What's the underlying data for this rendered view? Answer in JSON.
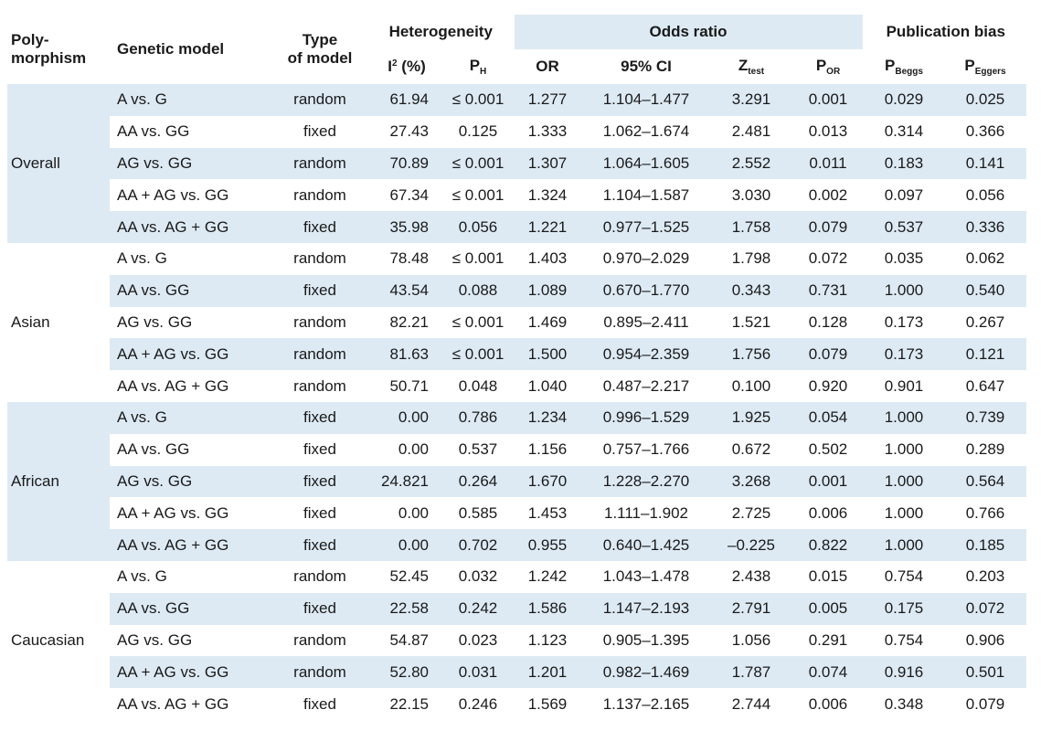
{
  "headers": {
    "polymorphism_line1": "Poly-",
    "polymorphism_line2": "morphism",
    "genetic_model": "Genetic model",
    "type_line1": "Type",
    "type_line2": "of model",
    "heterogeneity": "Heterogeneity",
    "odds_ratio": "Odds ratio",
    "publication_bias": "Publication bias",
    "i2_main": "I",
    "i2_sup": "2",
    "i2_rest": " (%)",
    "ph_main": "P",
    "ph_sub": "H",
    "or": "OR",
    "ci": "95% CI",
    "z_main": "Z",
    "z_sub": "test",
    "por_main": "P",
    "por_sub": "OR",
    "pbeggs_main": "P",
    "pbeggs_sub": "Beggs",
    "peggers_main": "P",
    "peggers_sub": "Eggers"
  },
  "groups": [
    "Overall",
    "Asian",
    "African",
    "Caucasian"
  ],
  "rows": [
    {
      "model": "A vs. G",
      "type": "random",
      "i2": "61.94",
      "ph": "≤ 0.001",
      "or": "1.277",
      "ci": "1.104–1.477",
      "z": "3.291",
      "por": "0.001",
      "pb": "0.029",
      "pe": "0.025"
    },
    {
      "model": "AA vs. GG",
      "type": "fixed",
      "i2": "27.43",
      "ph": "0.125",
      "or": "1.333",
      "ci": "1.062–1.674",
      "z": "2.481",
      "por": "0.013",
      "pb": "0.314",
      "pe": "0.366"
    },
    {
      "model": "AG vs. GG",
      "type": "random",
      "i2": "70.89",
      "ph": "≤ 0.001",
      "or": "1.307",
      "ci": "1.064–1.605",
      "z": "2.552",
      "por": "0.011",
      "pb": "0.183",
      "pe": "0.141"
    },
    {
      "model": "AA + AG vs. GG",
      "type": "random",
      "i2": "67.34",
      "ph": "≤ 0.001",
      "or": "1.324",
      "ci": "1.104–1.587",
      "z": "3.030",
      "por": "0.002",
      "pb": "0.097",
      "pe": "0.056"
    },
    {
      "model": "AA vs. AG + GG",
      "type": "fixed",
      "i2": "35.98",
      "ph": "0.056",
      "or": "1.221",
      "ci": "0.977–1.525",
      "z": "1.758",
      "por": "0.079",
      "pb": "0.537",
      "pe": "0.336"
    },
    {
      "model": "A vs. G",
      "type": "random",
      "i2": "78.48",
      "ph": "≤ 0.001",
      "or": "1.403",
      "ci": "0.970–2.029",
      "z": "1.798",
      "por": "0.072",
      "pb": "0.035",
      "pe": "0.062"
    },
    {
      "model": "AA vs. GG",
      "type": "fixed",
      "i2": "43.54",
      "ph": "0.088",
      "or": "1.089",
      "ci": "0.670–1.770",
      "z": "0.343",
      "por": "0.731",
      "pb": "1.000",
      "pe": "0.540"
    },
    {
      "model": "AG vs. GG",
      "type": "random",
      "i2": "82.21",
      "ph": "≤ 0.001",
      "or": "1.469",
      "ci": "0.895–2.411",
      "z": "1.521",
      "por": "0.128",
      "pb": "0.173",
      "pe": "0.267"
    },
    {
      "model": "AA + AG vs. GG",
      "type": "random",
      "i2": "81.63",
      "ph": "≤ 0.001",
      "or": "1.500",
      "ci": "0.954–2.359",
      "z": "1.756",
      "por": "0.079",
      "pb": "0.173",
      "pe": "0.121"
    },
    {
      "model": "AA vs. AG + GG",
      "type": "random",
      "i2": "50.71",
      "ph": "0.048",
      "or": "1.040",
      "ci": "0.487–2.217",
      "z": "0.100",
      "por": "0.920",
      "pb": "0.901",
      "pe": "0.647"
    },
    {
      "model": "A vs. G",
      "type": "fixed",
      "i2": "0.00",
      "ph": "0.786",
      "or": "1.234",
      "ci": "0.996–1.529",
      "z": "1.925",
      "por": "0.054",
      "pb": "1.000",
      "pe": "0.739"
    },
    {
      "model": "AA vs. GG",
      "type": "fixed",
      "i2": "0.00",
      "ph": "0.537",
      "or": "1.156",
      "ci": "0.757–1.766",
      "z": "0.672",
      "por": "0.502",
      "pb": "1.000",
      "pe": "0.289"
    },
    {
      "model": "AG vs. GG",
      "type": "fixed",
      "i2": "24.821",
      "ph": "0.264",
      "or": "1.670",
      "ci": "1.228–2.270",
      "z": "3.268",
      "por": "0.001",
      "pb": "1.000",
      "pe": "0.564"
    },
    {
      "model": "AA + AG vs. GG",
      "type": "fixed",
      "i2": "0.00",
      "ph": "0.585",
      "or": "1.453",
      "ci": "1.111–1.902",
      "z": "2.725",
      "por": "0.006",
      "pb": "1.000",
      "pe": "0.766"
    },
    {
      "model": "AA vs. AG + GG",
      "type": "fixed",
      "i2": "0.00",
      "ph": "0.702",
      "or": "0.955",
      "ci": "0.640–1.425",
      "z": "–0.225",
      "por": "0.822",
      "pb": "1.000",
      "pe": "0.185"
    },
    {
      "model": "A vs. G",
      "type": "random",
      "i2": "52.45",
      "ph": "0.032",
      "or": "1.242",
      "ci": "1.043–1.478",
      "z": "2.438",
      "por": "0.015",
      "pb": "0.754",
      "pe": "0.203"
    },
    {
      "model": "AA vs. GG",
      "type": "fixed",
      "i2": "22.58",
      "ph": "0.242",
      "or": "1.586",
      "ci": "1.147–2.193",
      "z": "2.791",
      "por": "0.005",
      "pb": "0.175",
      "pe": "0.072"
    },
    {
      "model": "AG vs. GG",
      "type": "random",
      "i2": "54.87",
      "ph": "0.023",
      "or": "1.123",
      "ci": "0.905–1.395",
      "z": "1.056",
      "por": "0.291",
      "pb": "0.754",
      "pe": "0.906"
    },
    {
      "model": "AA + AG vs. GG",
      "type": "random",
      "i2": "52.80",
      "ph": "0.031",
      "or": "1.201",
      "ci": "0.982–1.469",
      "z": "1.787",
      "por": "0.074",
      "pb": "0.916",
      "pe": "0.501"
    },
    {
      "model": "AA vs. AG + GG",
      "type": "fixed",
      "i2": "22.15",
      "ph": "0.246",
      "or": "1.569",
      "ci": "1.137–2.165",
      "z": "2.744",
      "por": "0.006",
      "pb": "0.348",
      "pe": "0.079"
    }
  ],
  "colors": {
    "shade": "#ddeaf4",
    "text": "#1a1a1a"
  }
}
